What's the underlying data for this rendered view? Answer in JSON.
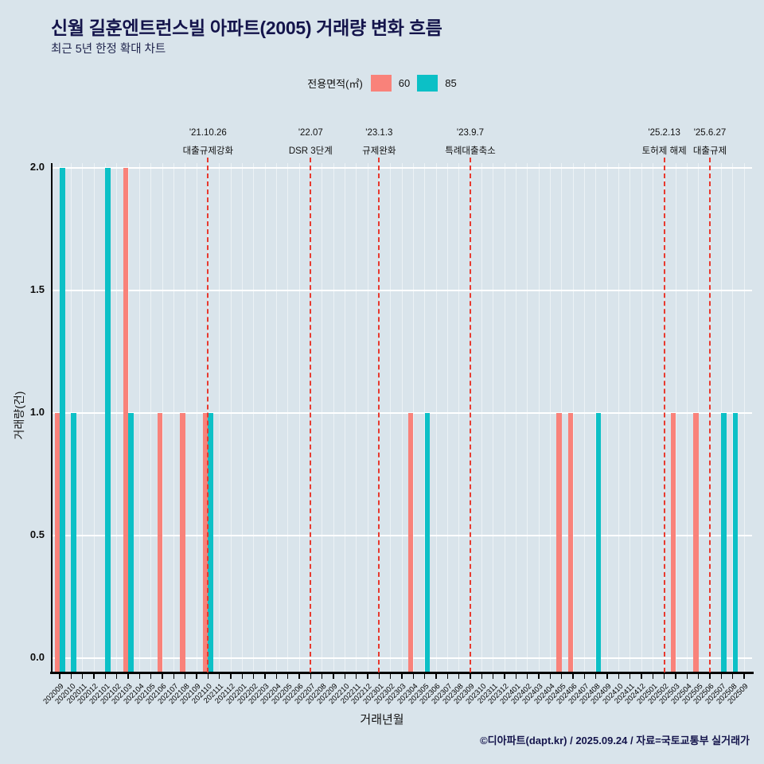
{
  "title": "신월 길훈엔트런스빌 아파트(2005) 거래량 변화 흐름",
  "subtitle": "최근 5년 한정 확대 차트",
  "legend": {
    "label": "전용면적(㎡)",
    "items": [
      {
        "name": "60",
        "color": "#f9827a"
      },
      {
        "name": "85",
        "color": "#0cc0c6"
      }
    ]
  },
  "footer": "©디아파트(dapt.kr) / 2025.09.24 / 자료=국토교통부 실거래가",
  "colors": {
    "background": "#d9e4eb",
    "title": "#14144b",
    "annotation_line": "#e8392e"
  },
  "chart_data": {
    "type": "bar",
    "title": "신월 길훈엔트런스빌 아파트(2005) 거래량 변화 흐름",
    "xlabel": "거래년월",
    "ylabel": "거래량(건)",
    "ylim": [
      0,
      2
    ],
    "yticks": [
      0.0,
      0.5,
      1.0,
      1.5,
      2.0
    ],
    "grid": true,
    "legend_position": "top",
    "categories": [
      "202009",
      "202010",
      "202011",
      "202012",
      "202101",
      "202102",
      "202103",
      "202104",
      "202105",
      "202106",
      "202107",
      "202108",
      "202109",
      "202110",
      "202111",
      "202112",
      "202201",
      "202202",
      "202203",
      "202204",
      "202205",
      "202206",
      "202207",
      "202208",
      "202209",
      "202210",
      "202211",
      "202212",
      "202301",
      "202302",
      "202303",
      "202304",
      "202305",
      "202306",
      "202307",
      "202308",
      "202309",
      "202310",
      "202311",
      "202312",
      "202401",
      "202402",
      "202403",
      "202404",
      "202405",
      "202406",
      "202407",
      "202408",
      "202409",
      "202410",
      "202411",
      "202412",
      "202501",
      "202502",
      "202503",
      "202504",
      "202505",
      "202506",
      "202507",
      "202508",
      "202509"
    ],
    "series": [
      {
        "name": "60",
        "color": "#f9827a",
        "values": [
          1,
          0,
          0,
          0,
          0,
          0,
          2,
          0,
          0,
          1,
          0,
          1,
          0,
          1,
          0,
          0,
          0,
          0,
          0,
          0,
          0,
          0,
          0,
          0,
          0,
          0,
          0,
          0,
          0,
          0,
          0,
          1,
          0,
          0,
          0,
          0,
          0,
          0,
          0,
          0,
          0,
          0,
          0,
          0,
          1,
          1,
          0,
          0,
          0,
          0,
          0,
          0,
          0,
          0,
          1,
          0,
          1,
          0,
          0,
          0,
          0
        ]
      },
      {
        "name": "85",
        "color": "#0cc0c6",
        "values": [
          2,
          1,
          0,
          0,
          2,
          0,
          1,
          0,
          0,
          0,
          0,
          0,
          0,
          1,
          0,
          0,
          0,
          0,
          0,
          0,
          0,
          0,
          0,
          0,
          0,
          0,
          0,
          0,
          0,
          0,
          0,
          0,
          1,
          0,
          0,
          0,
          0,
          0,
          0,
          0,
          0,
          0,
          0,
          0,
          0,
          0,
          0,
          1,
          0,
          0,
          0,
          0,
          0,
          0,
          0,
          0,
          0,
          0,
          1,
          1,
          0
        ]
      }
    ],
    "annotations": [
      {
        "month": "202110",
        "date": "'21.10.26",
        "label": "대출규제강화"
      },
      {
        "month": "202207",
        "date": "'22.07",
        "label": "DSR 3단계"
      },
      {
        "month": "202301",
        "date": "'23.1.3",
        "label": "규제완화"
      },
      {
        "month": "202309",
        "date": "'23.9.7",
        "label": "특례대출축소"
      },
      {
        "month": "202502",
        "date": "'25.2.13",
        "label": "토허제 해제"
      },
      {
        "month": "202506",
        "date": "'25.6.27",
        "label": "대출규제"
      }
    ]
  }
}
